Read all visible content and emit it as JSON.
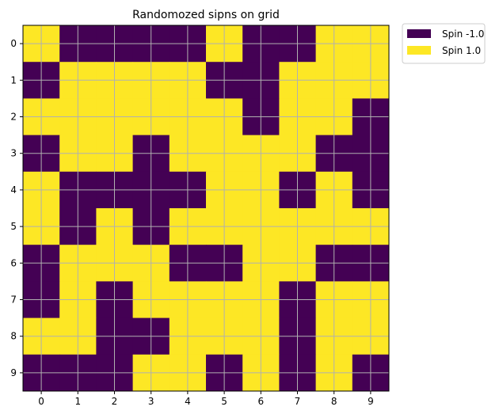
{
  "chart_data": {
    "type": "heatmap",
    "title": "Randomozed sipns on grid",
    "xlabel": "",
    "ylabel": "",
    "x_ticks": [
      "0",
      "1",
      "2",
      "3",
      "4",
      "5",
      "6",
      "7",
      "8",
      "9"
    ],
    "y_ticks": [
      "0",
      "1",
      "2",
      "3",
      "4",
      "5",
      "6",
      "7",
      "8",
      "9"
    ],
    "grid": true,
    "legend_position": "outside-top-right",
    "colors": {
      "-1.0": "#440154",
      "1.0": "#fde725",
      "grid": "#b0b0b0"
    },
    "legend": [
      {
        "label": "Spin -1.0",
        "value": -1.0,
        "color": "#440154"
      },
      {
        "label": "Spin 1.0",
        "value": 1.0,
        "color": "#fde725"
      }
    ],
    "values": [
      [
        1,
        -1,
        -1,
        -1,
        -1,
        1,
        -1,
        -1,
        1,
        1
      ],
      [
        -1,
        1,
        1,
        1,
        1,
        -1,
        -1,
        1,
        1,
        1
      ],
      [
        1,
        1,
        1,
        1,
        1,
        1,
        -1,
        1,
        1,
        -1
      ],
      [
        -1,
        1,
        1,
        -1,
        1,
        1,
        1,
        1,
        -1,
        -1
      ],
      [
        1,
        -1,
        -1,
        -1,
        -1,
        1,
        1,
        -1,
        1,
        -1
      ],
      [
        1,
        -1,
        1,
        -1,
        1,
        1,
        1,
        1,
        1,
        1
      ],
      [
        -1,
        1,
        1,
        1,
        -1,
        -1,
        1,
        1,
        -1,
        -1
      ],
      [
        -1,
        1,
        -1,
        1,
        1,
        1,
        1,
        -1,
        1,
        1
      ],
      [
        1,
        1,
        -1,
        -1,
        1,
        1,
        1,
        -1,
        1,
        1
      ],
      [
        -1,
        -1,
        -1,
        1,
        1,
        -1,
        1,
        -1,
        1,
        -1
      ]
    ]
  }
}
